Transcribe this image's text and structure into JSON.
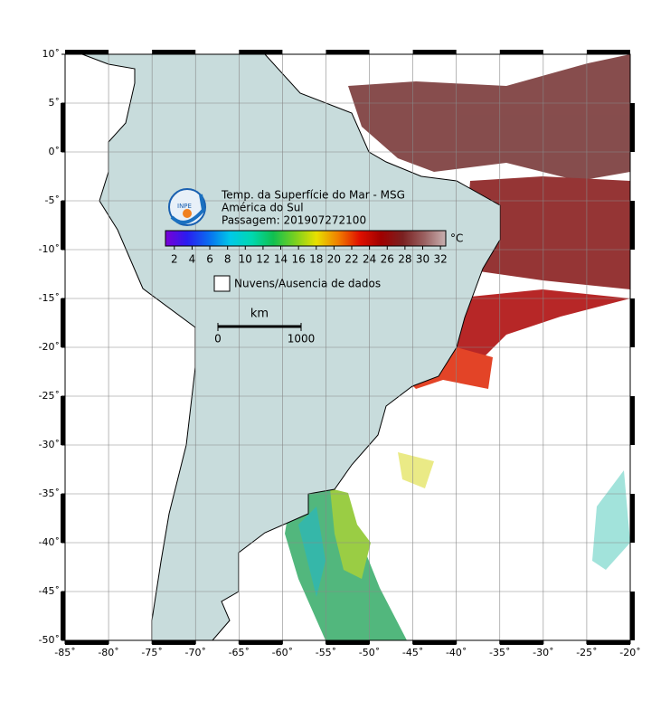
{
  "map": {
    "title_lines": [
      "Temp. da Superfície do Mar - MSG",
      "América do Sul",
      "Passagem: 201907272100"
    ],
    "xlim": [
      -85,
      -20
    ],
    "ylim": [
      -50,
      10
    ],
    "xticks": [
      {
        "value": -85,
        "label": "-85˚"
      },
      {
        "value": -80,
        "label": "-80˚"
      },
      {
        "value": -75,
        "label": "-75˚"
      },
      {
        "value": -70,
        "label": "-70˚"
      },
      {
        "value": -65,
        "label": "-65˚"
      },
      {
        "value": -60,
        "label": "-60˚"
      },
      {
        "value": -55,
        "label": "-55˚"
      },
      {
        "value": -50,
        "label": "-50˚"
      },
      {
        "value": -45,
        "label": "-45˚"
      },
      {
        "value": -40,
        "label": "-40˚"
      },
      {
        "value": -35,
        "label": "-35˚"
      },
      {
        "value": -30,
        "label": "-30˚"
      },
      {
        "value": -25,
        "label": "-25˚"
      },
      {
        "value": -20,
        "label": "-20˚"
      }
    ],
    "yticks": [
      {
        "value": 10,
        "label": "10˚"
      },
      {
        "value": 5,
        "label": "5˚"
      },
      {
        "value": 0,
        "label": "0˚"
      },
      {
        "value": -5,
        "label": "-5˚"
      },
      {
        "value": -10,
        "label": "-10˚"
      },
      {
        "value": -15,
        "label": "-15˚"
      },
      {
        "value": -20,
        "label": "-20˚"
      },
      {
        "value": -25,
        "label": "-25˚"
      },
      {
        "value": -30,
        "label": "-30˚"
      },
      {
        "value": -35,
        "label": "-35˚"
      },
      {
        "value": -40,
        "label": "-40˚"
      },
      {
        "value": -45,
        "label": "-45˚"
      },
      {
        "value": -50,
        "label": "-50˚"
      }
    ],
    "grid": true,
    "colorbar": {
      "unit": "°C",
      "lim": [
        1,
        32.6
      ],
      "ticks": [
        2,
        4,
        6,
        8,
        10,
        12,
        14,
        16,
        18,
        20,
        22,
        24,
        26,
        28,
        30,
        32
      ],
      "colors": [
        "#7a00d6",
        "#2a1cf0",
        "#0a6cf0",
        "#00c8e8",
        "#00d8b0",
        "#10c050",
        "#78d020",
        "#e8e000",
        "#f08000",
        "#e01000",
        "#a00000",
        "#7a2020",
        "#9a6060",
        "#c8b0b0"
      ]
    },
    "legend": "Nuvens/Ausencia de dados",
    "scale": {
      "unit": "km",
      "ticks": [
        0,
        1000
      ]
    }
  }
}
